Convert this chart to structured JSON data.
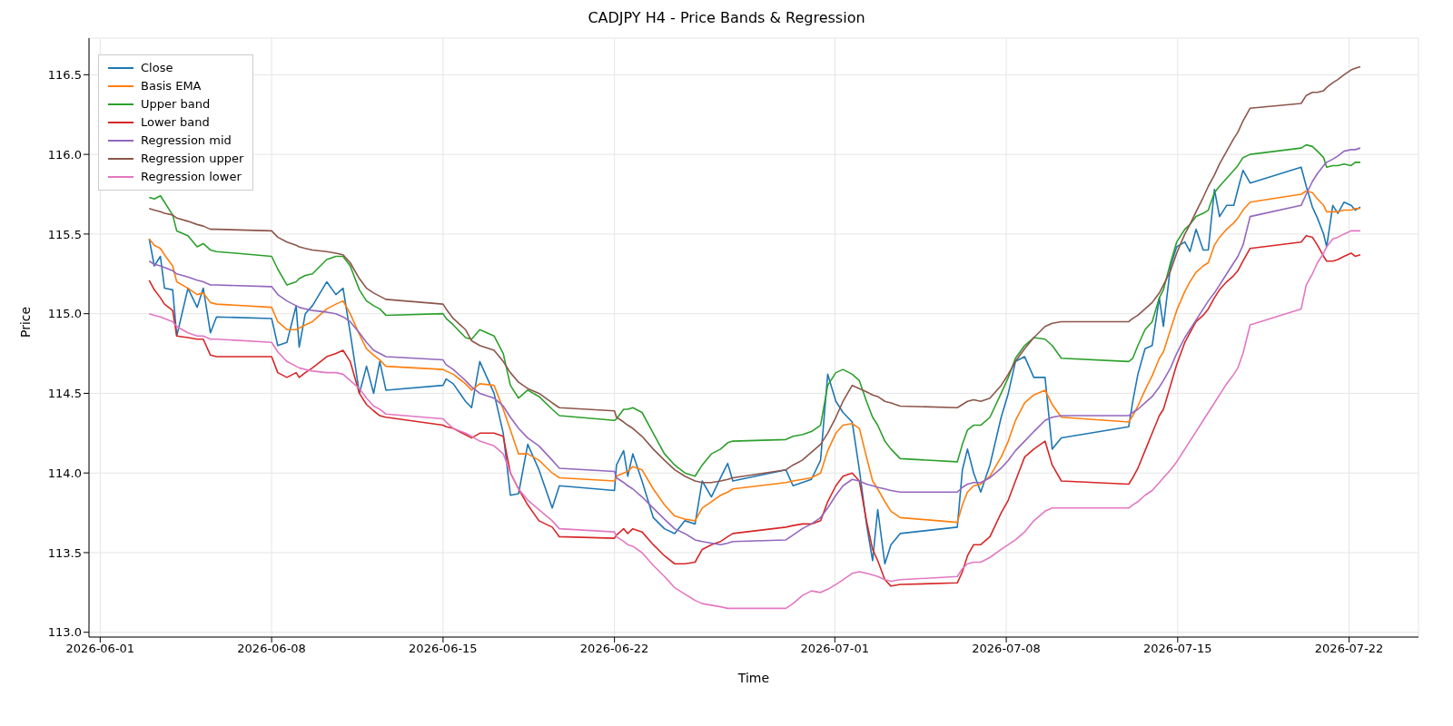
{
  "chart_data": {
    "type": "line",
    "title": "CADJPY H4 - Price Bands & Regression",
    "xlabel": "Time",
    "ylabel": "Price",
    "x": [
      "2026-06-03T00:00",
      "2026-06-03T05:00",
      "2026-06-03T11:00",
      "2026-06-03T15:00",
      "2026-06-03T23:00",
      "2026-06-04T03:00",
      "2026-06-04T14:00",
      "2026-06-04T23:00",
      "2026-06-05T05:00",
      "2026-06-05T12:00",
      "2026-06-05T18:00",
      "2026-06-08T00:00",
      "2026-06-08T06:00",
      "2026-06-08T15:00",
      "2026-06-09T00:00",
      "2026-06-09T03:00",
      "2026-06-09T09:00",
      "2026-06-09T16:00",
      "2026-06-10T06:00",
      "2026-06-10T15:00",
      "2026-06-10T22:00",
      "2026-06-11T05:00",
      "2026-06-11T14:00",
      "2026-06-11T21:00",
      "2026-06-12T04:00",
      "2026-06-12T10:00",
      "2026-06-12T16:00",
      "2026-06-15T00:00",
      "2026-06-15T03:00",
      "2026-06-15T10:00",
      "2026-06-15T22:00",
      "2026-06-16T04:00",
      "2026-06-16T12:00",
      "2026-06-17T02:00",
      "2026-06-17T11:00",
      "2026-06-17T18:00",
      "2026-06-18T02:00",
      "2026-06-18T11:00",
      "2026-06-18T22:00",
      "2026-06-19T11:00",
      "2026-06-19T18:00",
      "2026-06-22T00:00",
      "2026-06-22T02:00",
      "2026-06-22T09:00",
      "2026-06-22T13:00",
      "2026-06-22T18:00",
      "2026-06-23T03:00",
      "2026-06-23T14:00",
      "2026-06-24T01:00",
      "2026-06-24T11:00",
      "2026-06-24T21:00",
      "2026-06-25T07:00",
      "2026-06-25T14:00",
      "2026-06-25T23:00",
      "2026-06-26T08:00",
      "2026-06-26T15:00",
      "2026-06-26T20:00",
      "2026-06-29T00:00",
      "2026-06-29T07:00",
      "2026-06-29T16:00",
      "2026-06-30T01:00",
      "2026-06-30T10:00",
      "2026-06-30T17:00",
      "2026-07-01T01:00",
      "2026-07-01T08:00",
      "2026-07-01T17:00",
      "2026-07-02T00:00",
      "2026-07-02T07:00",
      "2026-07-02T13:00",
      "2026-07-02T18:00",
      "2026-07-03T01:00",
      "2026-07-03T07:00",
      "2026-07-03T16:00",
      "2026-07-06T00:00",
      "2026-07-06T05:00",
      "2026-07-06T10:00",
      "2026-07-06T16:00",
      "2026-07-06T23:00",
      "2026-07-07T08:00",
      "2026-07-07T19:00",
      "2026-07-08T02:00",
      "2026-07-08T09:00",
      "2026-07-08T18:00",
      "2026-07-09T03:00",
      "2026-07-09T14:00",
      "2026-07-09T21:00",
      "2026-07-10T06:00",
      "2026-07-13T00:00",
      "2026-07-13T04:00",
      "2026-07-13T09:00",
      "2026-07-13T16:00",
      "2026-07-13T23:00",
      "2026-07-14T06:00",
      "2026-07-14T10:00",
      "2026-07-14T17:00",
      "2026-07-14T23:00",
      "2026-07-15T07:00",
      "2026-07-15T12:00",
      "2026-07-15T18:00",
      "2026-07-16T01:00",
      "2026-07-16T06:00",
      "2026-07-16T12:00",
      "2026-07-16T17:00",
      "2026-07-17T00:00",
      "2026-07-17T07:00",
      "2026-07-17T11:00",
      "2026-07-17T16:00",
      "2026-07-17T23:00",
      "2026-07-20T01:00",
      "2026-07-20T06:00",
      "2026-07-20T12:00",
      "2026-07-20T17:00",
      "2026-07-20T23:00",
      "2026-07-21T02:00",
      "2026-07-21T08:00",
      "2026-07-21T13:00",
      "2026-07-21T19:00",
      "2026-07-22T02:00",
      "2026-07-22T06:00",
      "2026-07-22T11:00"
    ],
    "series": [
      {
        "name": "Close",
        "color": "#1f77b4",
        "values": [
          115.47,
          115.3,
          115.36,
          115.16,
          115.15,
          114.86,
          115.16,
          115.04,
          115.16,
          114.88,
          114.98,
          114.97,
          114.8,
          114.82,
          115.05,
          114.79,
          115.0,
          115.05,
          115.2,
          115.12,
          115.16,
          114.88,
          114.5,
          114.67,
          114.5,
          114.7,
          114.52,
          114.55,
          114.59,
          114.56,
          114.45,
          114.41,
          114.7,
          114.5,
          114.25,
          113.86,
          113.87,
          114.18,
          114.02,
          113.78,
          113.92,
          113.89,
          114.05,
          114.14,
          113.98,
          114.12,
          113.95,
          113.72,
          113.65,
          113.62,
          113.7,
          113.68,
          113.95,
          113.85,
          113.97,
          114.06,
          113.95,
          114.02,
          113.92,
          113.94,
          113.96,
          114.08,
          114.62,
          114.45,
          114.38,
          114.32,
          114.02,
          113.68,
          113.45,
          113.77,
          113.43,
          113.55,
          113.62,
          113.66,
          114.02,
          114.15,
          114.0,
          113.88,
          114.05,
          114.35,
          114.5,
          114.7,
          114.73,
          114.6,
          114.6,
          114.15,
          114.22,
          114.29,
          114.45,
          114.62,
          114.78,
          114.8,
          115.1,
          114.92,
          115.3,
          115.42,
          115.45,
          115.39,
          115.53,
          115.4,
          115.4,
          115.78,
          115.61,
          115.68,
          115.68,
          115.78,
          115.9,
          115.82,
          115.92,
          115.8,
          115.67,
          115.6,
          115.5,
          115.42,
          115.68,
          115.63,
          115.7,
          115.68,
          115.65,
          115.67
        ]
      },
      {
        "name": "Basis EMA",
        "color": "#ff7f0e",
        "values": [
          115.47,
          115.43,
          115.41,
          115.37,
          115.3,
          115.2,
          115.16,
          115.12,
          115.13,
          115.07,
          115.06,
          115.04,
          114.95,
          114.9,
          114.9,
          114.91,
          114.93,
          114.95,
          115.03,
          115.06,
          115.08,
          115.0,
          114.87,
          114.78,
          114.74,
          114.71,
          114.67,
          114.65,
          114.64,
          114.62,
          114.56,
          114.52,
          114.56,
          114.55,
          114.4,
          114.27,
          114.12,
          114.12,
          114.08,
          114.0,
          113.97,
          113.95,
          113.98,
          114.0,
          114.01,
          114.04,
          114.02,
          113.9,
          113.8,
          113.73,
          113.71,
          113.7,
          113.78,
          113.82,
          113.86,
          113.88,
          113.9,
          113.94,
          113.95,
          113.96,
          113.97,
          114.0,
          114.14,
          114.25,
          114.3,
          114.31,
          114.28,
          114.1,
          113.95,
          113.9,
          113.82,
          113.76,
          113.72,
          113.69,
          113.8,
          113.88,
          113.92,
          113.93,
          113.98,
          114.1,
          114.2,
          114.33,
          114.44,
          114.49,
          114.52,
          114.43,
          114.35,
          114.32,
          114.36,
          114.42,
          114.52,
          114.61,
          114.72,
          114.76,
          114.9,
          115.02,
          115.14,
          115.2,
          115.26,
          115.3,
          115.32,
          115.43,
          115.48,
          115.53,
          115.57,
          115.6,
          115.65,
          115.7,
          115.75,
          115.77,
          115.76,
          115.72,
          115.68,
          115.64,
          115.64,
          115.64,
          115.65,
          115.65,
          115.66,
          115.66
        ]
      },
      {
        "name": "Upper band",
        "color": "#2ca02c",
        "values": [
          115.73,
          115.72,
          115.74,
          115.7,
          115.62,
          115.52,
          115.49,
          115.42,
          115.44,
          115.4,
          115.39,
          115.36,
          115.28,
          115.18,
          115.2,
          115.22,
          115.24,
          115.25,
          115.34,
          115.36,
          115.36,
          115.3,
          115.15,
          115.08,
          115.05,
          115.03,
          114.99,
          115.0,
          114.97,
          114.93,
          114.85,
          114.84,
          114.9,
          114.86,
          114.75,
          114.55,
          114.47,
          114.52,
          114.48,
          114.4,
          114.36,
          114.33,
          114.34,
          114.4,
          114.4,
          114.41,
          114.38,
          114.25,
          114.12,
          114.05,
          114.0,
          113.98,
          114.05,
          114.12,
          114.15,
          114.19,
          114.2,
          114.21,
          114.23,
          114.24,
          114.26,
          114.3,
          114.55,
          114.63,
          114.65,
          114.62,
          114.58,
          114.45,
          114.35,
          114.3,
          114.2,
          114.15,
          114.09,
          114.07,
          114.18,
          114.27,
          114.3,
          114.3,
          114.35,
          114.5,
          114.6,
          114.72,
          114.8,
          114.85,
          114.84,
          114.8,
          114.72,
          114.7,
          114.72,
          114.8,
          114.9,
          114.95,
          115.1,
          115.15,
          115.32,
          115.45,
          115.53,
          115.56,
          115.61,
          115.63,
          115.65,
          115.76,
          115.8,
          115.85,
          115.9,
          115.93,
          115.98,
          116.0,
          116.04,
          116.06,
          116.05,
          116.02,
          115.98,
          115.92,
          115.93,
          115.93,
          115.94,
          115.93,
          115.95,
          115.95
        ]
      },
      {
        "name": "Lower band",
        "color": "#d62728",
        "values": [
          115.21,
          115.15,
          115.1,
          115.06,
          115.02,
          114.86,
          114.85,
          114.84,
          114.84,
          114.74,
          114.73,
          114.73,
          114.63,
          114.6,
          114.63,
          114.6,
          114.63,
          114.66,
          114.73,
          114.75,
          114.77,
          114.7,
          114.5,
          114.43,
          114.39,
          114.36,
          114.35,
          114.3,
          114.29,
          114.28,
          114.24,
          114.22,
          114.25,
          114.25,
          114.23,
          114.0,
          113.9,
          113.8,
          113.7,
          113.66,
          113.6,
          113.59,
          113.61,
          113.65,
          113.62,
          113.65,
          113.63,
          113.55,
          113.48,
          113.43,
          113.43,
          113.44,
          113.52,
          113.55,
          113.57,
          113.6,
          113.62,
          113.66,
          113.67,
          113.68,
          113.68,
          113.7,
          113.82,
          113.92,
          113.98,
          114.0,
          113.95,
          113.7,
          113.52,
          113.45,
          113.33,
          113.29,
          113.3,
          113.31,
          113.38,
          113.48,
          113.55,
          113.55,
          113.6,
          113.75,
          113.83,
          113.95,
          114.1,
          114.15,
          114.2,
          114.05,
          113.95,
          113.93,
          113.97,
          114.03,
          114.14,
          114.25,
          114.36,
          114.4,
          114.55,
          114.68,
          114.82,
          114.88,
          114.95,
          114.99,
          115.03,
          115.1,
          115.15,
          115.2,
          115.24,
          115.27,
          115.33,
          115.41,
          115.45,
          115.49,
          115.48,
          115.43,
          115.36,
          115.33,
          115.33,
          115.34,
          115.36,
          115.38,
          115.36,
          115.37
        ]
      },
      {
        "name": "Regression mid",
        "color": "#9467bd",
        "values": [
          115.33,
          115.31,
          115.3,
          115.29,
          115.27,
          115.25,
          115.23,
          115.21,
          115.2,
          115.18,
          115.18,
          115.17,
          115.12,
          115.08,
          115.05,
          115.04,
          115.03,
          115.02,
          115.01,
          115.0,
          114.98,
          114.95,
          114.88,
          114.82,
          114.77,
          114.75,
          114.73,
          114.71,
          114.68,
          114.65,
          114.58,
          114.54,
          114.5,
          114.47,
          114.42,
          114.35,
          114.28,
          114.22,
          114.17,
          114.08,
          114.03,
          114.01,
          113.97,
          113.94,
          113.92,
          113.9,
          113.85,
          113.78,
          113.71,
          113.65,
          113.62,
          113.58,
          113.57,
          113.56,
          113.55,
          113.56,
          113.57,
          113.58,
          113.61,
          113.65,
          113.68,
          113.72,
          113.78,
          113.86,
          113.92,
          113.96,
          113.95,
          113.93,
          113.92,
          113.91,
          113.9,
          113.89,
          113.88,
          113.88,
          113.91,
          113.93,
          113.94,
          113.94,
          113.97,
          114.03,
          114.08,
          114.14,
          114.2,
          114.26,
          114.33,
          114.35,
          114.36,
          114.36,
          114.38,
          114.4,
          114.44,
          114.48,
          114.54,
          114.58,
          114.66,
          114.75,
          114.85,
          114.9,
          114.96,
          115.03,
          115.08,
          115.13,
          115.18,
          115.25,
          115.32,
          115.36,
          115.43,
          115.61,
          115.68,
          115.75,
          115.83,
          115.88,
          115.93,
          115.95,
          115.97,
          115.99,
          116.02,
          116.03,
          116.03,
          116.04
        ]
      },
      {
        "name": "Regression upper",
        "color": "#8c564b",
        "values": [
          115.66,
          115.65,
          115.64,
          115.63,
          115.62,
          115.6,
          115.58,
          115.56,
          115.55,
          115.53,
          115.53,
          115.52,
          115.48,
          115.45,
          115.43,
          115.42,
          115.41,
          115.4,
          115.39,
          115.38,
          115.37,
          115.32,
          115.22,
          115.16,
          115.13,
          115.11,
          115.09,
          115.06,
          115.03,
          114.97,
          114.9,
          114.83,
          114.8,
          114.77,
          114.7,
          114.63,
          114.57,
          114.53,
          114.5,
          114.44,
          114.41,
          114.39,
          114.35,
          114.32,
          114.3,
          114.28,
          114.23,
          114.15,
          114.08,
          114.02,
          113.98,
          113.95,
          113.94,
          113.94,
          113.95,
          113.96,
          113.97,
          114.02,
          114.05,
          114.08,
          114.13,
          114.18,
          114.25,
          114.35,
          114.45,
          114.55,
          114.53,
          114.51,
          114.49,
          114.48,
          114.45,
          114.44,
          114.42,
          114.41,
          114.43,
          114.45,
          114.46,
          114.45,
          114.47,
          114.55,
          114.62,
          114.7,
          114.78,
          114.85,
          114.92,
          114.94,
          114.95,
          114.95,
          114.97,
          114.99,
          115.03,
          115.07,
          115.13,
          115.18,
          115.27,
          115.38,
          115.5,
          115.56,
          115.64,
          115.73,
          115.8,
          115.87,
          115.94,
          116.02,
          116.1,
          116.14,
          116.21,
          116.29,
          116.32,
          116.37,
          116.39,
          116.39,
          116.4,
          116.42,
          116.45,
          116.47,
          116.5,
          116.53,
          116.54,
          116.55
        ]
      },
      {
        "name": "Regression lower",
        "color": "#e377c2",
        "values": [
          115.0,
          114.99,
          114.98,
          114.97,
          114.95,
          114.92,
          114.88,
          114.86,
          114.86,
          114.84,
          114.84,
          114.82,
          114.76,
          114.7,
          114.67,
          114.66,
          114.65,
          114.64,
          114.63,
          114.63,
          114.62,
          114.58,
          114.53,
          114.47,
          114.42,
          114.4,
          114.37,
          114.34,
          114.32,
          114.28,
          114.25,
          114.23,
          114.2,
          114.17,
          114.12,
          114.0,
          113.9,
          113.83,
          113.77,
          113.7,
          113.65,
          113.63,
          113.6,
          113.57,
          113.55,
          113.54,
          113.5,
          113.42,
          113.35,
          113.28,
          113.24,
          113.2,
          113.18,
          113.17,
          113.16,
          113.15,
          113.15,
          113.15,
          113.18,
          113.23,
          113.26,
          113.25,
          113.27,
          113.3,
          113.33,
          113.37,
          113.38,
          113.37,
          113.36,
          113.35,
          113.33,
          113.32,
          113.33,
          113.35,
          113.4,
          113.43,
          113.44,
          113.44,
          113.47,
          113.52,
          113.55,
          113.58,
          113.63,
          113.7,
          113.76,
          113.78,
          113.78,
          113.78,
          113.8,
          113.82,
          113.86,
          113.89,
          113.94,
          113.97,
          114.02,
          114.07,
          114.15,
          114.2,
          114.26,
          114.33,
          114.38,
          114.44,
          114.49,
          114.56,
          114.62,
          114.66,
          114.75,
          114.93,
          115.03,
          115.18,
          115.25,
          115.32,
          115.38,
          115.42,
          115.47,
          115.48,
          115.5,
          115.52,
          115.52,
          115.52
        ]
      }
    ],
    "xlim": [
      "2026-05-31T13:00",
      "2026-07-24T20:00"
    ],
    "xticks": [
      "2026-06-01",
      "2026-06-08",
      "2026-06-15",
      "2026-06-22",
      "2026-07-01",
      "2026-07-08",
      "2026-07-15",
      "2026-07-22"
    ],
    "ylim": [
      112.97,
      116.73
    ],
    "yticks": [
      {
        "value": 113,
        "label": "113.0"
      },
      {
        "value": 113.5,
        "label": "113.5"
      },
      {
        "value": 114,
        "label": "114.0"
      },
      {
        "value": 114.5,
        "label": "114.5"
      },
      {
        "value": 115,
        "label": "115.0"
      },
      {
        "value": 115.5,
        "label": "115.5"
      },
      {
        "value": 116,
        "label": "116.0"
      },
      {
        "value": 116.5,
        "label": "116.5"
      }
    ],
    "grid": true,
    "legend": "top left"
  }
}
